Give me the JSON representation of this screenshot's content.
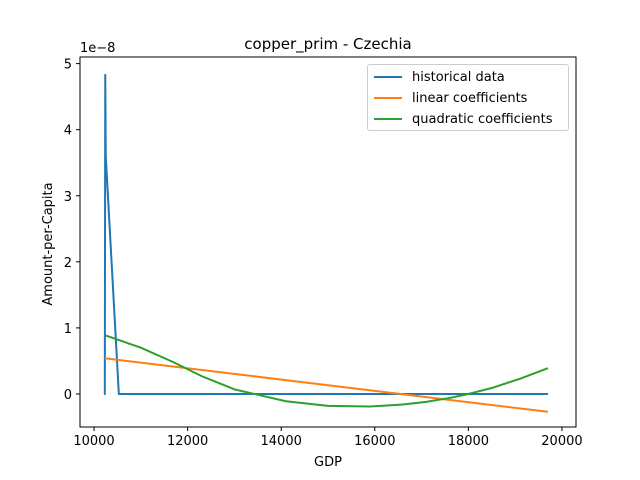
{
  "chart_data": {
    "type": "line",
    "title": "copper_prim - Czechia",
    "xlabel": "GDP",
    "ylabel": "Amount-per-Capita",
    "y_multiplier_label": "1e−8",
    "xlim": [
      9700,
      20300
    ],
    "ylim": [
      -0.5,
      5.1
    ],
    "xticks": [
      10000,
      12000,
      14000,
      16000,
      18000,
      20000
    ],
    "xtick_labels": [
      "10000",
      "12000",
      "14000",
      "16000",
      "18000",
      "20000"
    ],
    "yticks": [
      0,
      1,
      2,
      3,
      4,
      5
    ],
    "ytick_labels": [
      "0",
      "1",
      "2",
      "3",
      "4",
      "5"
    ],
    "grid": false,
    "legend_position": "top-right",
    "series": [
      {
        "name": "historical data",
        "color": "#1f77b4",
        "x": [
          10250,
          10230,
          10240,
          10250,
          10530,
          11650,
          11700,
          16600,
          17000,
          19700
        ],
        "y": [
          0.0,
          0.0,
          4.83,
          3.6,
          0.0,
          0.0,
          0.0,
          0.0,
          0.0,
          0.0
        ]
      },
      {
        "name": "linear coefficients",
        "color": "#ff7f0e",
        "x": [
          10230,
          19700
        ],
        "y": [
          0.54,
          -0.27
        ]
      },
      {
        "name": "quadratic coefficients",
        "color": "#2ca02c",
        "x": [
          10230,
          11000,
          11700,
          12300,
          13000,
          14100,
          15000,
          15900,
          16600,
          17100,
          17600,
          18000,
          18500,
          19100,
          19700
        ],
        "y": [
          0.89,
          0.7,
          0.48,
          0.27,
          0.07,
          -0.11,
          -0.18,
          -0.19,
          -0.16,
          -0.12,
          -0.06,
          0.0,
          0.09,
          0.23,
          0.39
        ]
      }
    ]
  }
}
